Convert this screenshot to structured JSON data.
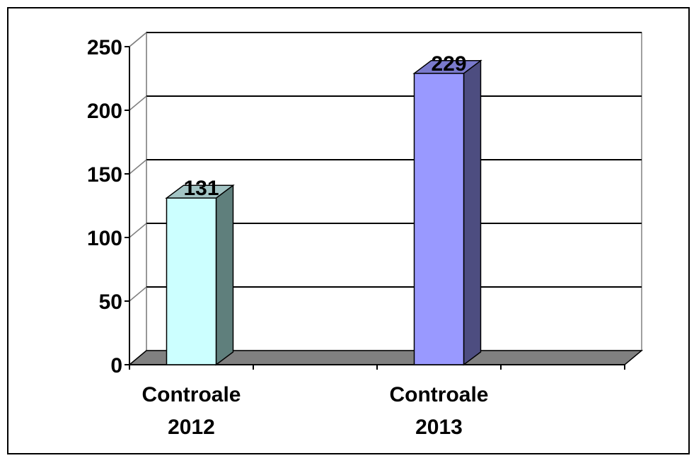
{
  "chart_data": {
    "type": "bar",
    "title": "",
    "xlabel": "",
    "ylabel": "",
    "categories": [
      [
        "Controale",
        "2012"
      ],
      [
        "Controale",
        "2013"
      ]
    ],
    "values": [
      131,
      229
    ],
    "data_labels": [
      "131",
      "229"
    ],
    "ylim": [
      0,
      250
    ],
    "yticks": [
      0,
      50,
      100,
      150,
      200,
      250
    ],
    "ytick_labels": [
      "0",
      "50",
      "100",
      "150",
      "200",
      "250"
    ],
    "grid": true,
    "legend": "none",
    "three_d": true,
    "colors": {
      "bars": [
        {
          "front": "#ccffff",
          "side": "#5f7f7c",
          "top": "#a3c4c4"
        },
        {
          "front": "#9999ff",
          "side": "#4d4d80",
          "top": "#7a7acc"
        }
      ],
      "floor": "#808080",
      "gridline": "#000000",
      "wall": "#ffffff"
    }
  }
}
